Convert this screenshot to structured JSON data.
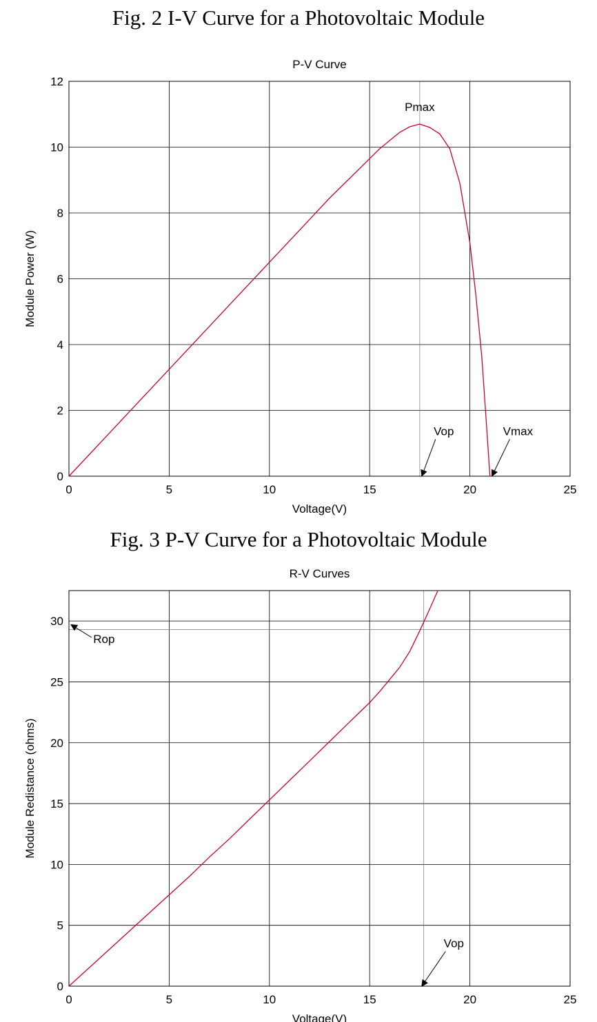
{
  "captions": {
    "top": "Fig. 2 I-V Curve for a Photovoltaic Module",
    "middle": "Fig. 3 P-V Curve for a Photovoltaic Module"
  },
  "colors": {
    "curve": "#cc0033",
    "grid": "#000000",
    "background": "#ffffff"
  },
  "chart_data": [
    {
      "type": "line",
      "title": "P-V Curve",
      "xlabel": "Voltage(V)",
      "ylabel": "Module Power (W)",
      "xlim": [
        0,
        25
      ],
      "ylim": [
        0,
        12
      ],
      "xticks": [
        0,
        5,
        10,
        15,
        20,
        25
      ],
      "yticks": [
        0,
        2,
        4,
        6,
        8,
        10,
        12
      ],
      "grid": true,
      "series": [
        {
          "x": [
            0,
            1,
            2,
            3,
            4,
            5,
            6,
            7,
            8,
            9,
            10,
            11,
            12,
            13,
            14,
            15,
            15.5,
            16,
            16.5,
            17,
            17.5,
            18,
            18.5,
            19,
            19.5,
            20,
            20.3,
            20.6,
            20.8,
            21.0
          ],
          "y": [
            0,
            0.65,
            1.3,
            1.95,
            2.6,
            3.25,
            3.9,
            4.55,
            5.2,
            5.85,
            6.5,
            7.15,
            7.8,
            8.45,
            9.05,
            9.65,
            9.95,
            10.2,
            10.45,
            10.62,
            10.7,
            10.6,
            10.4,
            9.95,
            8.9,
            7.1,
            5.5,
            3.6,
            1.8,
            0
          ]
        }
      ],
      "annotations": [
        {
          "text": "Pmax",
          "x": 17.5,
          "y": 11.1
        },
        {
          "text": "Vop",
          "x": 18.7,
          "y": 1.25,
          "arrow_to": [
            17.6,
            0
          ]
        },
        {
          "text": "Vmax",
          "x": 22.4,
          "y": 1.25,
          "arrow_to": [
            21.1,
            0
          ]
        }
      ],
      "vline_x": 17.5
    },
    {
      "type": "line",
      "title": "R-V Curves",
      "xlabel": "Voltage(V)",
      "ylabel": "Module Redistance (ohms)",
      "xlim": [
        0,
        25
      ],
      "ylim": [
        0,
        32.5
      ],
      "xticks": [
        0,
        5,
        10,
        15,
        20,
        25
      ],
      "yticks": [
        0,
        5,
        10,
        15,
        20,
        25,
        30
      ],
      "grid": true,
      "series": [
        {
          "x": [
            0,
            1,
            2,
            3,
            4,
            5,
            6,
            7,
            8,
            9,
            10,
            11,
            12,
            13,
            14,
            15,
            15.5,
            16,
            16.5,
            17,
            17.5,
            18,
            18.4
          ],
          "y": [
            0,
            1.5,
            3.0,
            4.5,
            6.0,
            7.5,
            9.0,
            10.6,
            12.1,
            13.7,
            15.3,
            16.9,
            18.5,
            20.1,
            21.7,
            23.3,
            24.2,
            25.2,
            26.2,
            27.5,
            29.2,
            31.0,
            32.5
          ]
        }
      ],
      "annotations": [
        {
          "text": "Rop",
          "x": 1.75,
          "y": 28.2,
          "arrow_to": [
            0.1,
            29.7
          ]
        },
        {
          "text": "Vop",
          "x": 19.2,
          "y": 3.2,
          "arrow_to": [
            17.6,
            0
          ]
        }
      ],
      "vline_x": 17.7,
      "hline_y": 29.3
    }
  ]
}
